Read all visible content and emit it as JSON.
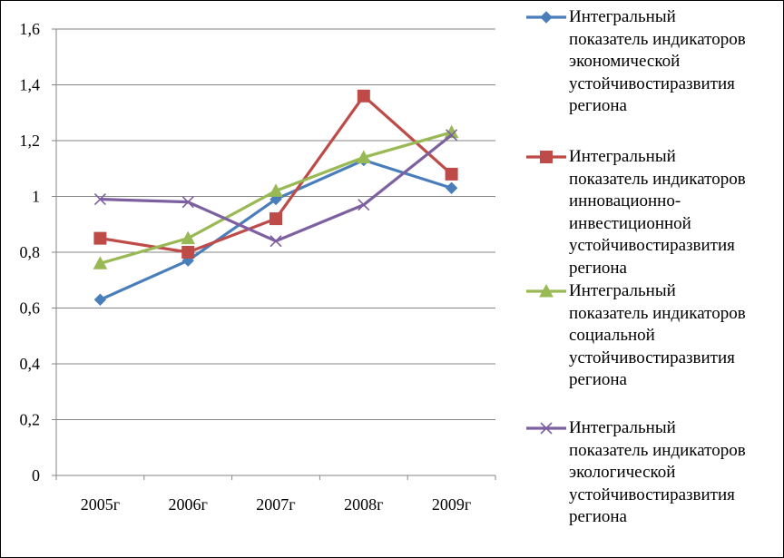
{
  "chart_data": {
    "type": "line",
    "categories": [
      "2005г",
      "2006г",
      "2007г",
      "2008г",
      "2009г"
    ],
    "ylim": [
      0,
      1.6
    ],
    "yticks": [
      "0",
      "0,2",
      "0,4",
      "0,6",
      "0,8",
      "1",
      "1,2",
      "1,4",
      "1,6"
    ],
    "grid": true,
    "legend_position": "right",
    "series": [
      {
        "name": "Интегральный показатель индикаторов экономической устойчивостиразвития региона",
        "lines": [
          "Интегральный",
          "показатель индикаторов",
          "экономической",
          "устойчивостиразвития",
          "региона"
        ],
        "values": [
          0.63,
          0.77,
          0.99,
          1.13,
          1.03
        ],
        "color": "#4a7ebb",
        "marker": "diamond"
      },
      {
        "name": "Интегральный показатель индикаторов инновационно-инвестиционной устойчивостиразвития региона",
        "lines": [
          "Интегральный",
          "показатель индикаторов",
          "инновационно-",
          "инвестиционной",
          "устойчивостиразвития",
          "региона"
        ],
        "values": [
          0.85,
          0.8,
          0.92,
          1.36,
          1.08
        ],
        "color": "#be4b48",
        "marker": "square"
      },
      {
        "name": "Интегральный показатель индикаторов социальной устойчивостиразвития региона",
        "lines": [
          "Интегральный",
          "показатель индикаторов",
          "социальной",
          "устойчивостиразвития",
          "региона"
        ],
        "values": [
          0.76,
          0.85,
          1.02,
          1.14,
          1.23
        ],
        "color": "#98b954",
        "marker": "triangle"
      },
      {
        "name": "Интегральный показатель индикаторов экологической устойчивостиразвития региона",
        "lines": [
          "Интегральный",
          "показатель индикаторов",
          "экологической",
          "устойчивостиразвития",
          "региона"
        ],
        "values": [
          0.99,
          0.98,
          0.84,
          0.97,
          1.22
        ],
        "color": "#7d60a0",
        "marker": "x"
      }
    ]
  }
}
